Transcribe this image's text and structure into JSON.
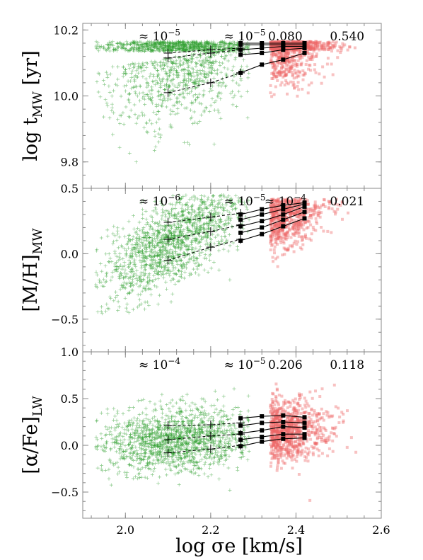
{
  "xlabel": "log σe [km/s]",
  "colors": {
    "green": "#2e9e2e",
    "red": "#ee6666",
    "trend": "#000000",
    "frame": "#888888"
  },
  "chart_data": [
    {
      "type": "scatter",
      "panel": "age",
      "ylabel_base": "log t",
      "ylabel_sub": "MW",
      "ylabel_tail": " [yr]",
      "xlim": [
        1.9,
        2.6
      ],
      "ylim": [
        9.72,
        10.22
      ],
      "x_ticks": [
        2.0,
        2.2,
        2.4,
        2.6
      ],
      "y_ticks": [
        9.8,
        10.0,
        10.2
      ],
      "y_tick_labels": [
        "9.8",
        "10.0",
        "10.2"
      ],
      "pvalues": [
        {
          "x": 2.08,
          "base": "≈ 10",
          "exp": "−5",
          "text": ""
        },
        {
          "x": 2.28,
          "base": "≈ 10",
          "exp": "−5",
          "text": ""
        },
        {
          "x": 2.375,
          "base": "",
          "exp": "",
          "text": "0.080"
        },
        {
          "x": 2.52,
          "base": "",
          "exp": "",
          "text": "0.540"
        }
      ],
      "green_trends": [
        {
          "x": [
            2.1,
            2.2,
            2.27
          ],
          "y": [
            10.13,
            10.14,
            10.145
          ]
        },
        {
          "x": [
            2.1,
            2.2,
            2.27
          ],
          "y": [
            10.115,
            10.13,
            10.14
          ]
        },
        {
          "x": [
            2.1,
            2.2,
            2.27
          ],
          "y": [
            10.01,
            10.04,
            10.07
          ]
        }
      ],
      "red_trends": [
        {
          "x": [
            2.27,
            2.32,
            2.37,
            2.42
          ],
          "y": [
            10.16,
            10.16,
            10.16,
            10.16
          ]
        },
        {
          "x": [
            2.27,
            2.32,
            2.37,
            2.42
          ],
          "y": [
            10.155,
            10.155,
            10.155,
            10.155
          ]
        },
        {
          "x": [
            2.27,
            2.32,
            2.37,
            2.42
          ],
          "y": [
            10.14,
            10.145,
            10.15,
            10.15
          ]
        },
        {
          "x": [
            2.27,
            2.32,
            2.37,
            2.42
          ],
          "y": [
            10.125,
            10.13,
            10.14,
            10.145
          ]
        },
        {
          "x": [
            2.27,
            2.32,
            2.37,
            2.42
          ],
          "y": [
            10.07,
            10.095,
            10.11,
            10.13
          ]
        }
      ],
      "green_cloud": {
        "xmean": 2.12,
        "xsd": 0.09,
        "xmin": 1.93,
        "xmax": 2.29,
        "ymode": 10.12,
        "ysd": 0.1,
        "ymax": 10.165,
        "ymin": 9.72,
        "slope": 0.2
      },
      "red_cloud": {
        "xmean": 2.34,
        "xsd": 0.06,
        "xmin": 2.25,
        "xmax": 2.56,
        "ymode": 10.14,
        "ysd": 0.06,
        "ymax": 10.165,
        "ymin": 9.78,
        "slope": 0.15
      }
    },
    {
      "type": "scatter",
      "panel": "metallicity",
      "ylabel_base": "[M/H]",
      "ylabel_sub": "MW",
      "ylabel_tail": "",
      "xlim": [
        1.9,
        2.6
      ],
      "ylim": [
        -0.75,
        0.5
      ],
      "x_ticks": [
        2.0,
        2.2,
        2.4,
        2.6
      ],
      "y_ticks": [
        -0.5,
        0.0,
        0.5
      ],
      "y_tick_labels": [
        "−0.5",
        "0.0",
        "0.5"
      ],
      "pvalues": [
        {
          "x": 2.08,
          "base": "≈ 10",
          "exp": "−6",
          "text": ""
        },
        {
          "x": 2.28,
          "base": "≈ 10",
          "exp": "−5",
          "text": ""
        },
        {
          "x": 2.375,
          "base": "≈ 10",
          "exp": "−4",
          "text": ""
        },
        {
          "x": 2.52,
          "base": "",
          "exp": "",
          "text": "0.021"
        }
      ],
      "green_trends": [
        {
          "x": [
            2.1,
            2.2,
            2.27
          ],
          "y": [
            0.24,
            0.28,
            0.31
          ]
        },
        {
          "x": [
            2.1,
            2.2,
            2.27
          ],
          "y": [
            0.11,
            0.17,
            0.22
          ]
        },
        {
          "x": [
            2.1,
            2.2,
            2.27
          ],
          "y": [
            -0.05,
            0.05,
            0.11
          ]
        }
      ],
      "red_trends": [
        {
          "x": [
            2.27,
            2.32,
            2.37,
            2.42
          ],
          "y": [
            0.3,
            0.34,
            0.37,
            0.39
          ]
        },
        {
          "x": [
            2.27,
            2.32,
            2.37,
            2.42
          ],
          "y": [
            0.26,
            0.3,
            0.34,
            0.38
          ]
        },
        {
          "x": [
            2.27,
            2.32,
            2.37,
            2.42
          ],
          "y": [
            0.21,
            0.25,
            0.3,
            0.36
          ]
        },
        {
          "x": [
            2.27,
            2.32,
            2.37,
            2.42
          ],
          "y": [
            0.16,
            0.2,
            0.26,
            0.32
          ]
        },
        {
          "x": [
            2.27,
            2.32,
            2.37,
            2.42
          ],
          "y": [
            0.1,
            0.15,
            0.21,
            0.27
          ]
        }
      ],
      "green_cloud": {
        "xmean": 2.12,
        "xsd": 0.09,
        "xmin": 1.93,
        "xmax": 2.29,
        "ymode": 0.12,
        "ysd": 0.16,
        "ymax": 0.45,
        "ymin": -0.5,
        "slope": 1.8
      },
      "red_cloud": {
        "xmean": 2.34,
        "xsd": 0.06,
        "xmin": 2.25,
        "xmax": 2.56,
        "ymode": 0.26,
        "ysd": 0.13,
        "ymax": 0.42,
        "ymin": -0.25,
        "slope": 1.2
      }
    },
    {
      "type": "scatter",
      "panel": "alpha",
      "ylabel_base": "[α/Fe]",
      "ylabel_sub": "LW",
      "ylabel_tail": "",
      "xlim": [
        1.9,
        2.6
      ],
      "ylim": [
        -0.78,
        1.0
      ],
      "x_ticks": [
        2.0,
        2.2,
        2.4,
        2.6
      ],
      "x_tick_labels": [
        "2.0",
        "2.2",
        "2.4",
        "2.6"
      ],
      "y_ticks": [
        -0.5,
        0.0,
        0.5,
        1.0
      ],
      "y_tick_labels": [
        "−0.5",
        "0.0",
        "0.5",
        "1.0"
      ],
      "pvalues": [
        {
          "x": 2.08,
          "base": "≈ 10",
          "exp": "−4",
          "text": ""
        },
        {
          "x": 2.28,
          "base": "≈ 10",
          "exp": "−5",
          "text": ""
        },
        {
          "x": 2.375,
          "base": "",
          "exp": "",
          "text": "0.206"
        },
        {
          "x": 2.52,
          "base": "",
          "exp": "",
          "text": "0.118"
        }
      ],
      "green_trends": [
        {
          "x": [
            2.1,
            2.2,
            2.27
          ],
          "y": [
            0.21,
            0.22,
            0.24
          ]
        },
        {
          "x": [
            2.1,
            2.2,
            2.27
          ],
          "y": [
            0.06,
            0.1,
            0.12
          ]
        },
        {
          "x": [
            2.1,
            2.2,
            2.27
          ],
          "y": [
            -0.08,
            -0.04,
            0.0
          ]
        }
      ],
      "red_trends": [
        {
          "x": [
            2.27,
            2.32,
            2.37,
            2.42
          ],
          "y": [
            0.29,
            0.31,
            0.32,
            0.3
          ]
        },
        {
          "x": [
            2.27,
            2.32,
            2.37,
            2.42
          ],
          "y": [
            0.21,
            0.24,
            0.25,
            0.24
          ]
        },
        {
          "x": [
            2.27,
            2.32,
            2.37,
            2.42
          ],
          "y": [
            0.13,
            0.16,
            0.2,
            0.19
          ]
        },
        {
          "x": [
            2.27,
            2.32,
            2.37,
            2.42
          ],
          "y": [
            0.06,
            0.09,
            0.12,
            0.12
          ]
        },
        {
          "x": [
            2.27,
            2.32,
            2.37,
            2.42
          ],
          "y": [
            -0.01,
            0.04,
            0.07,
            0.08
          ]
        }
      ],
      "green_cloud": {
        "xmean": 2.12,
        "xsd": 0.09,
        "xmin": 1.93,
        "xmax": 2.29,
        "ymode": 0.06,
        "ysd": 0.17,
        "ymax": 0.62,
        "ymin": -0.72,
        "slope": 0.3
      },
      "red_cloud": {
        "xmean": 2.34,
        "xsd": 0.06,
        "xmin": 2.25,
        "xmax": 2.56,
        "ymode": 0.15,
        "ysd": 0.16,
        "ymax": 0.7,
        "ymin": -0.62,
        "slope": 0.3
      }
    }
  ]
}
